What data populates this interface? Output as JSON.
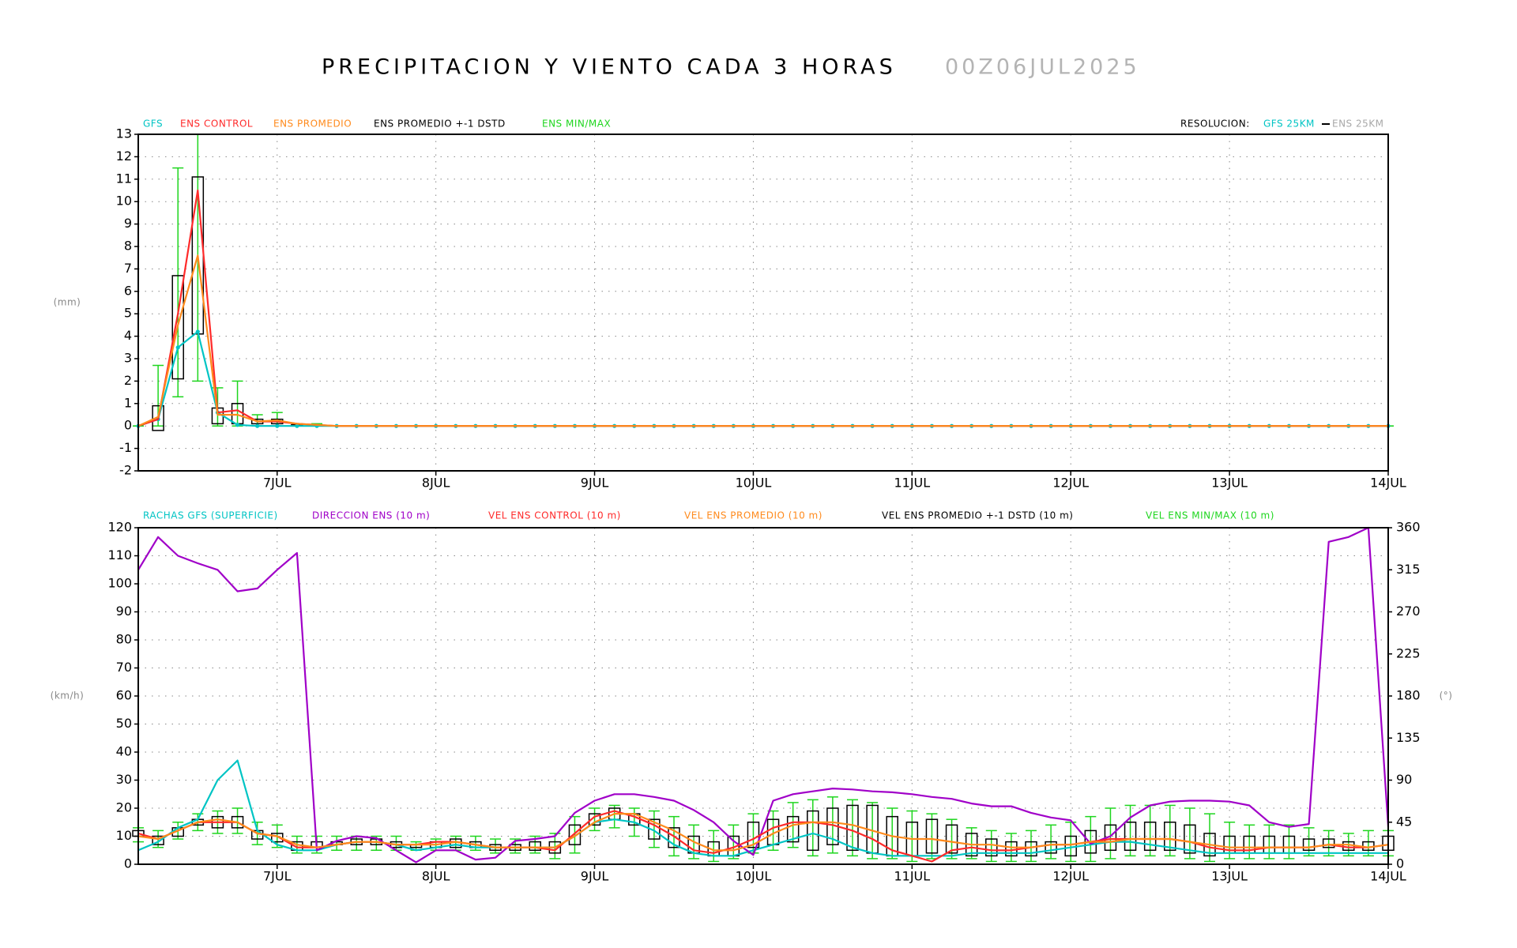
{
  "chart_data": [
    {
      "type": "line",
      "title": "PRECIPITACION Y VIENTO CADA 3 HORAS",
      "subtitle": "00Z06JUL2025",
      "resolution": {
        "label": "RESOLUCION:",
        "gfs": "GFS 25KM",
        "ens": "ENS 25KM"
      },
      "ylabel": "(mm)",
      "categories": [
        null,
        null,
        null,
        null,
        null,
        null,
        null,
        "7JUL",
        null,
        null,
        null,
        null,
        null,
        null,
        null,
        "8JUL",
        null,
        null,
        null,
        null,
        null,
        null,
        null,
        "9JUL",
        null,
        null,
        null,
        null,
        null,
        null,
        null,
        "10JUL",
        null,
        null,
        null,
        null,
        null,
        null,
        null,
        "11JUL",
        null,
        null,
        null,
        null,
        null,
        null,
        null,
        "12JUL",
        null,
        null,
        null,
        null,
        null,
        null,
        null,
        "13JUL",
        null,
        null,
        null,
        null,
        null,
        null,
        null,
        "14JUL"
      ],
      "ylim": [
        -2,
        13
      ],
      "yticks": [
        -2,
        -1,
        0,
        1,
        2,
        3,
        4,
        5,
        6,
        7,
        8,
        9,
        10,
        11,
        12,
        13
      ],
      "grid": true,
      "series": [
        {
          "name": "GFS",
          "color": "#00c4c4",
          "marker": true,
          "values": [
            0,
            0.3,
            3.5,
            4.2,
            0.6,
            0.05,
            0,
            0,
            0,
            0,
            0,
            0,
            0,
            0,
            0,
            0,
            0,
            0,
            0,
            0,
            0,
            0,
            0,
            0,
            0,
            0,
            0,
            0,
            0,
            0,
            0,
            0,
            0,
            0,
            0,
            0,
            0,
            0,
            0,
            0,
            0,
            0,
            0,
            0,
            0,
            0,
            0,
            0,
            0,
            0,
            0,
            0,
            0,
            0,
            0,
            0,
            0,
            0,
            0,
            0,
            0,
            0,
            0,
            0
          ]
        },
        {
          "name": "ENS CONTROL",
          "color": "#ff2a2a",
          "values": [
            0,
            0.3,
            5,
            10.5,
            0.6,
            0.7,
            0.2,
            0.2,
            0.1,
            0.05,
            0,
            0,
            0,
            0,
            0,
            0,
            0,
            0,
            0,
            0,
            0,
            0,
            0,
            0,
            0,
            0,
            0,
            0,
            0,
            0,
            0,
            0,
            0,
            0,
            0,
            0,
            0,
            0,
            0,
            0,
            0,
            0,
            0,
            0,
            0,
            0,
            0,
            0,
            0,
            0,
            0,
            0,
            0,
            0,
            0,
            0,
            0,
            0,
            0,
            0,
            0,
            0,
            0,
            0
          ]
        },
        {
          "name": "ENS PROMEDIO",
          "color": "#ff8a1c",
          "values": [
            0,
            0.4,
            4.5,
            7.6,
            0.5,
            0.5,
            0.2,
            0.25,
            0.1,
            0.05,
            0,
            0,
            0,
            0,
            0,
            0,
            0,
            0,
            0,
            0,
            0,
            0,
            0,
            0,
            0,
            0,
            0,
            0,
            0,
            0,
            0,
            0,
            0,
            0,
            0,
            0,
            0,
            0,
            0,
            0,
            0,
            0,
            0,
            0,
            0,
            0,
            0,
            0,
            0,
            0,
            0,
            0,
            0,
            0,
            0,
            0,
            0,
            0,
            0,
            0,
            0,
            0,
            0,
            0
          ]
        }
      ],
      "band": {
        "name": "ENS PROMEDIO +-1 DSTD",
        "color": "#000000",
        "low": [
          0,
          -0.2,
          2.1,
          4.1,
          0.1,
          0.1,
          0.1,
          0.1,
          0,
          0,
          0,
          0,
          0,
          0,
          0,
          0,
          0,
          0,
          0,
          0,
          0,
          0,
          0,
          0,
          0,
          0,
          0,
          0,
          0,
          0,
          0,
          0,
          0,
          0,
          0,
          0,
          0,
          0,
          0,
          0,
          0,
          0,
          0,
          0,
          0,
          0,
          0,
          0,
          0,
          0,
          0,
          0,
          0,
          0,
          0,
          0,
          0,
          0,
          0,
          0,
          0,
          0,
          0,
          0
        ],
        "high": [
          0,
          0.9,
          6.7,
          11.1,
          0.8,
          1,
          0.3,
          0.3,
          0.05,
          0.05,
          0,
          0,
          0,
          0,
          0,
          0,
          0,
          0,
          0,
          0,
          0,
          0,
          0,
          0,
          0,
          0,
          0,
          0,
          0,
          0,
          0,
          0,
          0,
          0,
          0,
          0,
          0,
          0,
          0,
          0,
          0,
          0,
          0,
          0,
          0,
          0,
          0,
          0,
          0,
          0,
          0,
          0,
          0,
          0,
          0,
          0,
          0,
          0,
          0,
          0,
          0,
          0,
          0,
          0
        ]
      },
      "range": {
        "name": "ENS MIN/MAX",
        "color": "#1ed61e",
        "min": [
          0,
          0,
          1.3,
          2,
          0,
          0,
          0,
          0,
          0,
          0,
          0,
          0,
          0,
          0,
          0,
          0,
          0,
          0,
          0,
          0,
          0,
          0,
          0,
          0,
          0,
          0,
          0,
          0,
          0,
          0,
          0,
          0,
          0,
          0,
          0,
          0,
          0,
          0,
          0,
          0,
          0,
          0,
          0,
          0,
          0,
          0,
          0,
          0,
          0,
          0,
          0,
          0,
          0,
          0,
          0,
          0,
          0,
          0,
          0,
          0,
          0,
          0,
          0,
          0
        ],
        "max": [
          0,
          2.7,
          11.5,
          13,
          1.7,
          2,
          0.5,
          0.6,
          0.1,
          0.1,
          0,
          0,
          0,
          0,
          0,
          0,
          0,
          0,
          0,
          0,
          0,
          0,
          0,
          0,
          0,
          0,
          0,
          0,
          0,
          0,
          0,
          0,
          0,
          0,
          0,
          0,
          0,
          0,
          0,
          0,
          0,
          0,
          0,
          0,
          0,
          0,
          0,
          0,
          0,
          0,
          0,
          0,
          0,
          0,
          0,
          0,
          0,
          0,
          0,
          0,
          0,
          0,
          0,
          0
        ]
      }
    },
    {
      "type": "line",
      "ylabel": "(km/h)",
      "y2label": "(°)",
      "categories": [
        null,
        null,
        null,
        null,
        null,
        null,
        null,
        "7JUL",
        null,
        null,
        null,
        null,
        null,
        null,
        null,
        "8JUL",
        null,
        null,
        null,
        null,
        null,
        null,
        null,
        "9JUL",
        null,
        null,
        null,
        null,
        null,
        null,
        null,
        "10JUL",
        null,
        null,
        null,
        null,
        null,
        null,
        null,
        "11JUL",
        null,
        null,
        null,
        null,
        null,
        null,
        null,
        "12JUL",
        null,
        null,
        null,
        null,
        null,
        null,
        null,
        "13JUL",
        null,
        null,
        null,
        null,
        null,
        null,
        null,
        "14JUL"
      ],
      "ylim": [
        0,
        120
      ],
      "yticks": [
        0,
        10,
        20,
        30,
        40,
        50,
        60,
        70,
        80,
        90,
        100,
        110,
        120
      ],
      "y2lim": [
        0,
        360
      ],
      "y2ticks": [
        0,
        45,
        90,
        135,
        180,
        225,
        270,
        315,
        360
      ],
      "grid": true,
      "series": [
        {
          "name": "RACHAS GFS (SUPERFICIE)",
          "color": "#00c4c4",
          "values": [
            5,
            8,
            13,
            16,
            30,
            37,
            12,
            7,
            5,
            5,
            7,
            8,
            8,
            7,
            5,
            6,
            7,
            6,
            6,
            6,
            6,
            6,
            10,
            15,
            16,
            15,
            12,
            7,
            4,
            3,
            3,
            5,
            7,
            9,
            11,
            9,
            6,
            4,
            3,
            3,
            3,
            3,
            4,
            4,
            4,
            4,
            5,
            6,
            7,
            8,
            8,
            7,
            6,
            5,
            4,
            4,
            4,
            4,
            4,
            4,
            4,
            4,
            4,
            4
          ]
        },
        {
          "name": "DIRECCION ENS (10 m)",
          "color": "#a000c8",
          "axis": "y2",
          "values": [
            315,
            350,
            330,
            322,
            315,
            292,
            295,
            315,
            333,
            15,
            25,
            30,
            28,
            15,
            2,
            15,
            15,
            5,
            7,
            25,
            27,
            30,
            55,
            68,
            75,
            75,
            72,
            68,
            58,
            45,
            25,
            10,
            68,
            75,
            78,
            81,
            80,
            78,
            77,
            75,
            72,
            70,
            65,
            62,
            62,
            55,
            50,
            47,
            22,
            30,
            50,
            63,
            67,
            68,
            68,
            67,
            63,
            45,
            40,
            43,
            345,
            350,
            360,
            40
          ]
        },
        {
          "name": "VEL ENS CONTROL (10 m)",
          "color": "#ff2a2a",
          "values": [
            11,
            9,
            12,
            15,
            15,
            15,
            11,
            10,
            6,
            6,
            7,
            8,
            8,
            7,
            7,
            8,
            8,
            7,
            6,
            6,
            6,
            5,
            11,
            17,
            19,
            17,
            14,
            10,
            5,
            4,
            6,
            9,
            13,
            15,
            15,
            14,
            12,
            9,
            5,
            3,
            1,
            5,
            6,
            5,
            5,
            6,
            7,
            7,
            8,
            9,
            9,
            9,
            9,
            8,
            6,
            5,
            5,
            6,
            6,
            6,
            7,
            6,
            6,
            7
          ]
        },
        {
          "name": "VEL ENS PROMEDIO (10 m)",
          "color": "#ff8a1c",
          "values": [
            10,
            9,
            12,
            15,
            16,
            15,
            11,
            10,
            7,
            6,
            7,
            8,
            8,
            7,
            7,
            7,
            8,
            7,
            6,
            6,
            6,
            6,
            10,
            15,
            18,
            18,
            15,
            12,
            8,
            5,
            5,
            7,
            11,
            14,
            15,
            15,
            14,
            12,
            10,
            9,
            9,
            8,
            7,
            7,
            6,
            6,
            7,
            7,
            8,
            8,
            9,
            9,
            9,
            8,
            7,
            6,
            6,
            6,
            6,
            6,
            7,
            7,
            6,
            7
          ]
        }
      ],
      "band": {
        "name": "VEL ENS PROMEDIO +-1 DSTD (10 m)",
        "color": "#000000",
        "low": [
          10,
          7,
          10,
          14,
          13,
          13,
          9,
          8,
          5,
          6,
          7,
          7,
          7,
          6,
          6,
          6,
          6,
          6,
          5,
          5,
          5,
          4,
          7,
          14,
          16,
          14,
          9,
          6,
          4,
          3,
          3,
          6,
          7,
          8,
          5,
          7,
          5,
          4,
          3,
          3,
          4,
          4,
          3,
          3,
          3,
          3,
          4,
          3,
          4,
          5,
          5,
          5,
          5,
          4,
          3,
          4,
          4,
          4,
          4,
          5,
          6,
          5,
          5,
          5
        ],
        "high": [
          12,
          10,
          13,
          16,
          17,
          17,
          12,
          11,
          8,
          8,
          8,
          9,
          9,
          8,
          7,
          8,
          9,
          8,
          7,
          7,
          8,
          8,
          14,
          18,
          20,
          18,
          16,
          13,
          10,
          8,
          10,
          15,
          16,
          17,
          19,
          20,
          21,
          21,
          17,
          15,
          16,
          14,
          11,
          9,
          8,
          8,
          8,
          10,
          12,
          14,
          15,
          15,
          15,
          14,
          11,
          10,
          10,
          10,
          10,
          9,
          9,
          8,
          8,
          10
        ]
      },
      "range": {
        "name": "VEL ENS MIN/MAX (10 m)",
        "color": "#1ed61e",
        "min": [
          8,
          6,
          9,
          12,
          11,
          11,
          7,
          6,
          4,
          4,
          5,
          5,
          5,
          5,
          5,
          5,
          5,
          5,
          4,
          4,
          4,
          2,
          4,
          12,
          13,
          10,
          6,
          3,
          2,
          1,
          2,
          4,
          5,
          6,
          3,
          4,
          3,
          2,
          2,
          1,
          2,
          2,
          2,
          1,
          1,
          1,
          2,
          1,
          1,
          2,
          3,
          3,
          3,
          2,
          1,
          2,
          2,
          2,
          2,
          3,
          3,
          3,
          3,
          3
        ],
        "max": [
          13,
          12,
          15,
          18,
          19,
          20,
          15,
          14,
          10,
          10,
          10,
          10,
          10,
          10,
          8,
          9,
          10,
          10,
          9,
          9,
          10,
          11,
          17,
          20,
          21,
          20,
          19,
          17,
          14,
          12,
          14,
          18,
          19,
          22,
          23,
          24,
          23,
          22,
          20,
          19,
          18,
          16,
          13,
          12,
          11,
          12,
          14,
          15,
          17,
          20,
          21,
          21,
          21,
          20,
          18,
          15,
          14,
          14,
          14,
          13,
          12,
          11,
          12,
          12
        ]
      }
    }
  ]
}
